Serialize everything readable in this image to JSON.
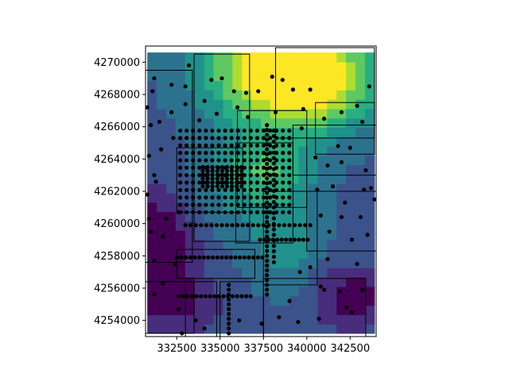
{
  "chart_data": {
    "type": "heatmap",
    "subtype": "filled-contour with scatter points and rectangular outlines",
    "title": "",
    "xlabel": "",
    "ylabel": "",
    "xlim": [
      330700,
      344000
    ],
    "ylim": [
      4253000,
      4271000
    ],
    "x_ticks": [
      332500,
      335000,
      337500,
      340000,
      342500
    ],
    "x_tick_labels": [
      "332500",
      "335000",
      "337500",
      "340000",
      "342500"
    ],
    "y_ticks": [
      4254000,
      4256000,
      4258000,
      4260000,
      4262000,
      4264000,
      4266000,
      4268000,
      4270000
    ],
    "y_tick_labels": [
      "4254000",
      "4256000",
      "4258000",
      "4260000",
      "4262000",
      "4264000",
      "4266000",
      "4268000",
      "4270000"
    ],
    "grid": false,
    "legend": "none",
    "colormap": "viridis",
    "colors": {
      "point": "#000000",
      "outline": "#000000",
      "viridis_stops": [
        "#440154",
        "#472d7b",
        "#3b528b",
        "#2c728e",
        "#21918c",
        "#28ae80",
        "#5ec962",
        "#addc30",
        "#fde725"
      ]
    },
    "contour_field": {
      "extent": {
        "x": [
          330800,
          343900
        ],
        "y": [
          4253200,
          4270600
        ]
      },
      "nx": 24,
      "ny": 30,
      "levels": 9,
      "hot_spots": [
        {
          "x": 338500,
          "y": 4269800,
          "amp": 0.75,
          "sx": 3000,
          "sy": 2500
        },
        {
          "x": 341000,
          "y": 4268500,
          "amp": 0.3,
          "sx": 2500,
          "sy": 2000
        },
        {
          "x": 337800,
          "y": 4263200,
          "amp": 0.32,
          "sx": 1800,
          "sy": 1600
        },
        {
          "x": 338800,
          "y": 4258600,
          "amp": 0.2,
          "sx": 1500,
          "sy": 2000
        },
        {
          "x": 335000,
          "y": 4261500,
          "amp": 0.1,
          "sx": 2000,
          "sy": 2500
        }
      ],
      "cold_spots": [
        {
          "x": 331200,
          "y": 4258500,
          "amp": 0.35,
          "sx": 1800,
          "sy": 2600
        },
        {
          "x": 342500,
          "y": 4255500,
          "amp": 0.25,
          "sx": 1600,
          "sy": 1400
        },
        {
          "x": 332800,
          "y": 4255000,
          "amp": 0.15,
          "sx": 1800,
          "sy": 1300
        }
      ],
      "base": 0.3
    },
    "rectangles": [
      {
        "x0": 338200,
        "y0": 4265300,
        "x1": 343900,
        "y1": 4270900
      },
      {
        "x0": 340500,
        "y0": 4264300,
        "x1": 343900,
        "y1": 4267500
      },
      {
        "x0": 333500,
        "y0": 4258900,
        "x1": 336700,
        "y1": 4270500
      },
      {
        "x0": 330500,
        "y0": 4257600,
        "x1": 333400,
        "y1": 4269500
      },
      {
        "x0": 332500,
        "y0": 4256600,
        "x1": 337000,
        "y1": 4258400
      },
      {
        "x0": 336000,
        "y0": 4261000,
        "x1": 340000,
        "y1": 4267000
      },
      {
        "x0": 335900,
        "y0": 4258800,
        "x1": 339200,
        "y1": 4265000
      },
      {
        "x0": 332500,
        "y0": 4260700,
        "x1": 336300,
        "y1": 4264700
      },
      {
        "x0": 337500,
        "y0": 4256200,
        "x1": 340600,
        "y1": 4262000
      },
      {
        "x0": 339200,
        "y0": 4263000,
        "x1": 344000,
        "y1": 4266100
      },
      {
        "x0": 330700,
        "y0": 4253200,
        "x1": 333500,
        "y1": 4256400
      },
      {
        "x0": 333000,
        "y0": 4253000,
        "x1": 334800,
        "y1": 4256400
      },
      {
        "x0": 337500,
        "y0": 4253000,
        "x1": 343400,
        "y1": 4256600
      },
      {
        "x0": 340000,
        "y0": 4258300,
        "x1": 344000,
        "y1": 4262000
      },
      {
        "x0": 335000,
        "y0": 4253000,
        "x1": 337500,
        "y1": 4256400
      }
    ],
    "point_clusters": [
      {
        "name": "dense-grid",
        "x0": 332700,
        "x1": 339100,
        "y0": 4260700,
        "y1": 4266200,
        "dx": 370,
        "dy": 460
      },
      {
        "name": "core-grid",
        "x0": 334000,
        "x1": 336300,
        "y0": 4262300,
        "y1": 4263700,
        "dx": 280,
        "dy": 240
      },
      {
        "name": "row-4259900",
        "x0": 333000,
        "x1": 340200,
        "y0": 4259900,
        "y1": 4259900,
        "dx": 300,
        "dy": 1
      },
      {
        "name": "row-4257900",
        "x0": 332500,
        "x1": 337500,
        "y0": 4257900,
        "y1": 4257900,
        "dx": 260,
        "dy": 1
      },
      {
        "name": "row-4255500",
        "x0": 332600,
        "x1": 337000,
        "y0": 4255500,
        "y1": 4255500,
        "dx": 260,
        "dy": 1
      },
      {
        "name": "row-4259000",
        "x0": 337300,
        "x1": 340100,
        "y0": 4259000,
        "y1": 4259000,
        "dx": 250,
        "dy": 1
      },
      {
        "name": "col-337700",
        "x0": 337700,
        "x1": 337700,
        "y0": 4255600,
        "y1": 4266200,
        "dx": 1,
        "dy": 300
      },
      {
        "name": "col-338100",
        "x0": 338100,
        "x1": 338100,
        "y0": 4257600,
        "y1": 4266000,
        "dx": 1,
        "dy": 340
      },
      {
        "name": "col-335500",
        "x0": 335500,
        "x1": 335500,
        "y0": 4253200,
        "y1": 4256300,
        "dx": 1,
        "dy": 300
      }
    ],
    "points": [
      [
        331200,
        4269000
      ],
      [
        332200,
        4268600
      ],
      [
        333000,
        4268500
      ],
      [
        333200,
        4269800
      ],
      [
        334500,
        4268900
      ],
      [
        335800,
        4268200
      ],
      [
        336500,
        4268100
      ],
      [
        337200,
        4268200
      ],
      [
        338600,
        4268900
      ],
      [
        339200,
        4268300
      ],
      [
        340200,
        4268300
      ],
      [
        343600,
        4268500
      ],
      [
        331000,
        4266100
      ],
      [
        331500,
        4266300
      ],
      [
        332200,
        4266900
      ],
      [
        333000,
        4267400
      ],
      [
        334100,
        4267600
      ],
      [
        334800,
        4266800
      ],
      [
        336600,
        4266600
      ],
      [
        338200,
        4266900
      ],
      [
        339700,
        4265900
      ],
      [
        341000,
        4266500
      ],
      [
        342000,
        4266900
      ],
      [
        343200,
        4266300
      ],
      [
        330900,
        4264200
      ],
      [
        331200,
        4263000
      ],
      [
        331600,
        4264600
      ],
      [
        340500,
        4264100
      ],
      [
        341200,
        4263600
      ],
      [
        342000,
        4263800
      ],
      [
        343400,
        4263300
      ],
      [
        343700,
        4262200
      ],
      [
        330800,
        4261800
      ],
      [
        331300,
        4262600
      ],
      [
        340600,
        4262100
      ],
      [
        341500,
        4262300
      ],
      [
        342200,
        4261300
      ],
      [
        343300,
        4262100
      ],
      [
        343900,
        4261500
      ],
      [
        330900,
        4260300
      ],
      [
        331900,
        4260300
      ],
      [
        332600,
        4260700
      ],
      [
        340800,
        4260500
      ],
      [
        342000,
        4260400
      ],
      [
        343100,
        4260400
      ],
      [
        331000,
        4259500
      ],
      [
        331700,
        4259200
      ],
      [
        341300,
        4259500
      ],
      [
        342600,
        4259000
      ],
      [
        343500,
        4259300
      ],
      [
        331200,
        4257700
      ],
      [
        332400,
        4257500
      ],
      [
        340200,
        4257300
      ],
      [
        340800,
        4256100
      ],
      [
        331700,
        4256300
      ],
      [
        341900,
        4255800
      ],
      [
        343200,
        4255900
      ],
      [
        331200,
        4255600
      ],
      [
        332600,
        4254700
      ],
      [
        333600,
        4254000
      ],
      [
        334100,
        4253500
      ],
      [
        336100,
        4254000
      ],
      [
        337400,
        4253800
      ],
      [
        338400,
        4254200
      ],
      [
        339500,
        4253900
      ],
      [
        340700,
        4254100
      ],
      [
        342600,
        4254500
      ],
      [
        342300,
        4254800
      ],
      [
        341000,
        4255900
      ],
      [
        339000,
        4255200
      ],
      [
        332800,
        4253200
      ],
      [
        330800,
        4267200
      ],
      [
        331100,
        4268200
      ],
      [
        332300,
        4265300
      ],
      [
        333800,
        4266400
      ],
      [
        335100,
        4269000
      ],
      [
        336000,
        4267200
      ],
      [
        338000,
        4269100
      ],
      [
        339800,
        4267100
      ],
      [
        342900,
        4267300
      ],
      [
        341800,
        4264800
      ],
      [
        342500,
        4264700
      ],
      [
        341200,
        4257800
      ],
      [
        339600,
        4257000
      ],
      [
        342900,
        4257500
      ]
    ]
  }
}
